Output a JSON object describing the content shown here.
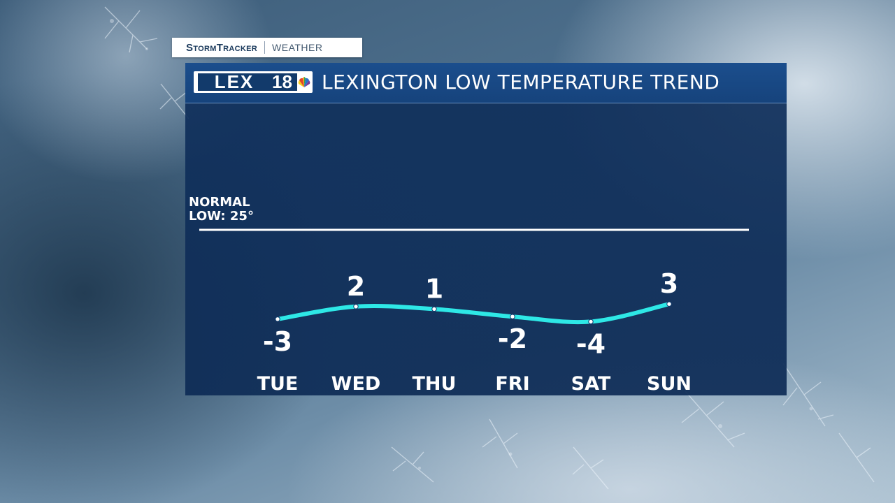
{
  "brand": {
    "storm": "StormTracker",
    "weather": "WEATHER"
  },
  "logo": {
    "lex": "LEX",
    "num": "18"
  },
  "title": "LEXINGTON LOW TEMPERATURE TREND",
  "normal": {
    "line1": "NORMAL",
    "line2": "LOW: 25°",
    "value": 25
  },
  "chart_data": {
    "type": "line",
    "title": "LEXINGTON LOW TEMPERATURE TREND",
    "categories": [
      "TUE",
      "WED",
      "THU",
      "FRI",
      "SAT",
      "SUN"
    ],
    "values": [
      -3,
      2,
      1,
      -2,
      -4,
      3
    ],
    "value_labels": [
      "-3",
      "2",
      "1",
      "-2",
      "-4",
      "3"
    ],
    "reference_line": {
      "label": "NORMAL LOW: 25°",
      "value": 25
    },
    "line_color": "#2ee8e6",
    "grid": false,
    "legend": "none"
  }
}
